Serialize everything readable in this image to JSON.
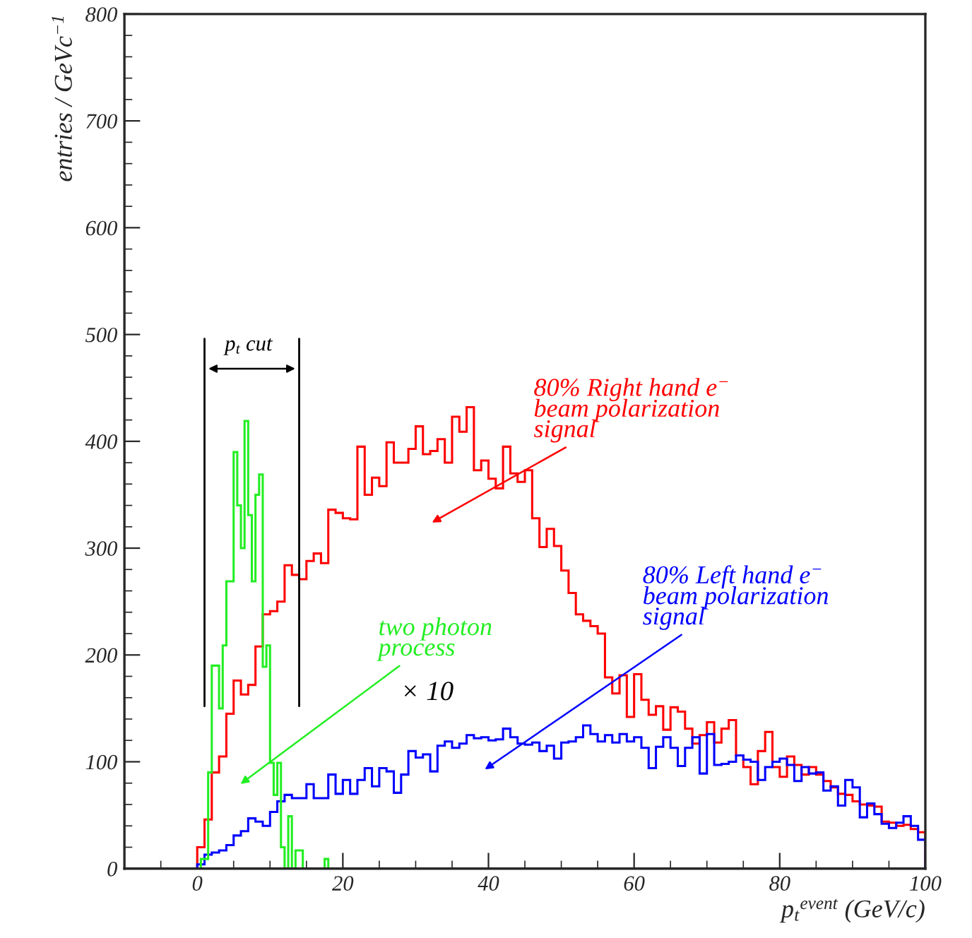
{
  "chart_data": {
    "type": "histogram",
    "xlabel": "p$_{t}$$^{event}$ (GeV/c)",
    "ylabel": "entries / GeVc$^{−1}$",
    "bins": [
      0,
      1,
      2,
      3,
      4,
      5,
      6,
      7,
      8,
      9,
      10,
      11,
      12,
      13,
      14,
      15,
      16,
      17,
      18,
      19,
      20,
      21,
      22,
      23,
      24,
      25,
      26,
      27,
      28,
      29,
      30,
      31,
      32,
      33,
      34,
      35,
      36,
      37,
      38,
      39,
      40,
      41,
      42,
      43,
      44,
      45,
      46,
      47,
      48,
      49,
      50,
      51,
      52,
      53,
      54,
      55,
      56,
      57,
      58,
      59,
      60,
      61,
      62,
      63,
      64,
      65,
      66,
      67,
      68,
      69,
      70,
      71,
      72,
      73,
      74,
      75,
      76,
      77,
      78,
      79,
      80,
      81,
      82,
      83,
      84,
      85,
      86,
      87,
      88,
      89,
      90,
      91,
      92,
      93,
      94,
      95,
      96,
      97,
      98,
      99,
      100
    ],
    "series": [
      {
        "color": "#ff0000",
        "values": [
          20,
          46,
          90,
          105,
          145,
          176,
          163,
          172,
          208,
          238,
          241,
          250,
          284,
          275,
          271,
          288,
          295,
          286,
          336,
          333,
          328,
          327,
          395,
          350,
          366,
          358,
          399,
          380,
          380,
          393,
          414,
          388,
          391,
          402,
          380,
          423,
          409,
          432,
          373,
          382,
          365,
          356,
          395,
          370,
          362,
          373,
          328,
          301,
          318,
          302,
          279,
          258,
          238,
          232,
          227,
          220,
          179,
          164,
          181,
          142,
          182,
          158,
          144,
          152,
          130,
          151,
          147,
          131,
          117,
          125,
          137,
          118,
          131,
          139,
          106,
          95,
          79,
          110,
          128,
          95,
          86,
          105,
          97,
          88,
          95,
          88,
          82,
          76,
          70,
          69,
          63,
          60,
          59,
          58,
          44,
          43,
          40,
          41,
          37,
          34
        ]
      },
      {
        "color": "#0000ff",
        "values": [
          4,
          13,
          15,
          17,
          22,
          31,
          35,
          47,
          44,
          40,
          53,
          63,
          69,
          66,
          66,
          79,
          66,
          66,
          88,
          70,
          83,
          70,
          83,
          94,
          77,
          94,
          91,
          71,
          88,
          110,
          104,
          107,
          91,
          115,
          119,
          113,
          117,
          125,
          122,
          123,
          120,
          121,
          131,
          123,
          117,
          116,
          118,
          110,
          115,
          103,
          118,
          119,
          123,
          134,
          126,
          119,
          125,
          118,
          126,
          119,
          123,
          113,
          94,
          114,
          123,
          113,
          96,
          113,
          123,
          89,
          126,
          97,
          98,
          100,
          106,
          102,
          100,
          83,
          95,
          100,
          103,
          97,
          82,
          95,
          89,
          90,
          73,
          77,
          59,
          83,
          76,
          48,
          61,
          51,
          42,
          38,
          43,
          49,
          40,
          27
        ]
      },
      {
        "color": "#22ee22",
        "bins": [
          0,
          0.5,
          1,
          1.5,
          2,
          2.5,
          3,
          3.5,
          4,
          4.5,
          5,
          5.5,
          6,
          6.5,
          7,
          7.5,
          8,
          8.5,
          9,
          9.5,
          10,
          10.5,
          11,
          11.5,
          12,
          12.5,
          13,
          13.5,
          14,
          14.5,
          15,
          15.5,
          16,
          16.5,
          17,
          17.5,
          18,
          18.5
        ],
        "values": [
          0,
          9,
          9,
          90,
          190,
          190,
          150,
          209,
          269,
          269,
          390,
          340,
          300,
          419,
          331,
          269,
          350,
          369,
          189,
          209,
          99,
          69,
          99,
          20,
          0,
          49,
          0,
          17,
          17,
          0,
          0,
          0,
          0,
          0,
          0,
          9,
          0
        ]
      }
    ],
    "xlim": [
      -10,
      100
    ],
    "xticks": [
      0,
      20,
      40,
      60,
      80,
      100
    ],
    "ylim": [
      0,
      800
    ],
    "yticks": [
      0,
      100,
      200,
      300,
      400,
      500,
      600,
      700,
      800
    ],
    "ref_lines": [
      {
        "axis": "x",
        "value": 1,
        "label": null
      },
      {
        "axis": "x",
        "value": 14,
        "label": null
      }
    ],
    "annotations": [
      "80% Right hand e$^{−}$\nbeam polarization\nsignal",
      "80% Left hand e$^{−}$\nbeam polarization\nsignal",
      "two photon\nprocess",
      "× 10",
      "p$_{t}$ cut"
    ],
    "grid": false,
    "legend": false
  }
}
